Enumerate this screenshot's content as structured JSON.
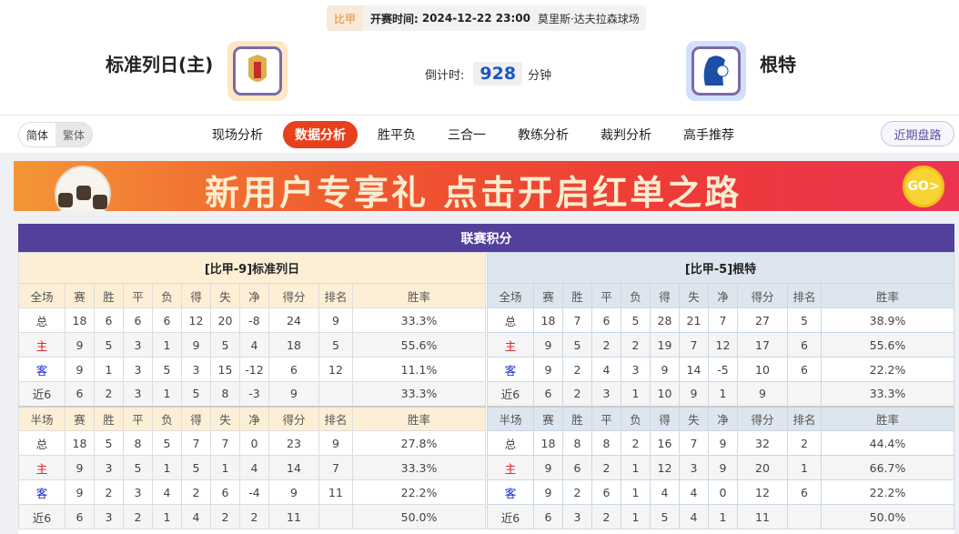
{
  "match": {
    "league": "比甲",
    "kickoff_label": "开赛时间:",
    "kickoff": "2024-12-22 23:00",
    "venue": "莫里斯·达夫拉森球场"
  },
  "home": {
    "name": "标准列日(主)",
    "logo_bg": "#fde7c4"
  },
  "away": {
    "name": "根特",
    "logo_bg": "#d2e0fb"
  },
  "countdown": {
    "label": "倒计时:",
    "value": "928",
    "unit": "分钟"
  },
  "lang": {
    "simplified": "简体",
    "traditional": "繁体"
  },
  "tabs": [
    {
      "label": "现场分析"
    },
    {
      "label": "数据分析",
      "active": true
    },
    {
      "label": "胜平负"
    },
    {
      "label": "三合一"
    },
    {
      "label": "教练分析"
    },
    {
      "label": "裁判分析"
    },
    {
      "label": "高手推荐"
    }
  ],
  "recent_button": "近期盘路",
  "banner": {
    "text": "新用户专享礼  点击开启红单之路",
    "go": "GO>"
  },
  "standings": {
    "title": "联赛积分",
    "columns_full": [
      "全场",
      "赛",
      "胜",
      "平",
      "负",
      "得",
      "失",
      "净",
      "得分",
      "排名",
      "胜率"
    ],
    "columns_half": [
      "半场",
      "赛",
      "胜",
      "平",
      "负",
      "得",
      "失",
      "净",
      "得分",
      "排名",
      "胜率"
    ],
    "home": {
      "header": "[比甲-9]标准列日",
      "full": [
        [
          "总",
          "18",
          "6",
          "6",
          "6",
          "12",
          "20",
          "-8",
          "24",
          "9",
          "33.3%"
        ],
        [
          "主",
          "9",
          "5",
          "3",
          "1",
          "9",
          "5",
          "4",
          "18",
          "5",
          "55.6%"
        ],
        [
          "客",
          "9",
          "1",
          "3",
          "5",
          "3",
          "15",
          "-12",
          "6",
          "12",
          "11.1%"
        ],
        [
          "近6",
          "6",
          "2",
          "3",
          "1",
          "5",
          "8",
          "-3",
          "9",
          "",
          "33.3%"
        ]
      ],
      "half": [
        [
          "总",
          "18",
          "5",
          "8",
          "5",
          "7",
          "7",
          "0",
          "23",
          "9",
          "27.8%"
        ],
        [
          "主",
          "9",
          "3",
          "5",
          "1",
          "5",
          "1",
          "4",
          "14",
          "7",
          "33.3%"
        ],
        [
          "客",
          "9",
          "2",
          "3",
          "4",
          "2",
          "6",
          "-4",
          "9",
          "11",
          "22.2%"
        ],
        [
          "近6",
          "6",
          "3",
          "2",
          "1",
          "4",
          "2",
          "2",
          "11",
          "",
          "50.0%"
        ]
      ]
    },
    "away": {
      "header": "[比甲-5]根特",
      "full": [
        [
          "总",
          "18",
          "7",
          "6",
          "5",
          "28",
          "21",
          "7",
          "27",
          "5",
          "38.9%"
        ],
        [
          "主",
          "9",
          "5",
          "2",
          "2",
          "19",
          "7",
          "12",
          "17",
          "6",
          "55.6%"
        ],
        [
          "客",
          "9",
          "2",
          "4",
          "3",
          "9",
          "14",
          "-5",
          "10",
          "6",
          "22.2%"
        ],
        [
          "近6",
          "6",
          "2",
          "3",
          "1",
          "10",
          "9",
          "1",
          "9",
          "",
          "33.3%"
        ]
      ],
      "half": [
        [
          "总",
          "18",
          "8",
          "8",
          "2",
          "16",
          "7",
          "9",
          "32",
          "2",
          "44.4%"
        ],
        [
          "主",
          "9",
          "6",
          "2",
          "1",
          "12",
          "3",
          "9",
          "20",
          "1",
          "66.7%"
        ],
        [
          "客",
          "9",
          "2",
          "6",
          "1",
          "4",
          "4",
          "0",
          "12",
          "6",
          "22.2%"
        ],
        [
          "近6",
          "6",
          "3",
          "2",
          "1",
          "5",
          "4",
          "1",
          "11",
          "",
          "50.0%"
        ]
      ]
    }
  }
}
